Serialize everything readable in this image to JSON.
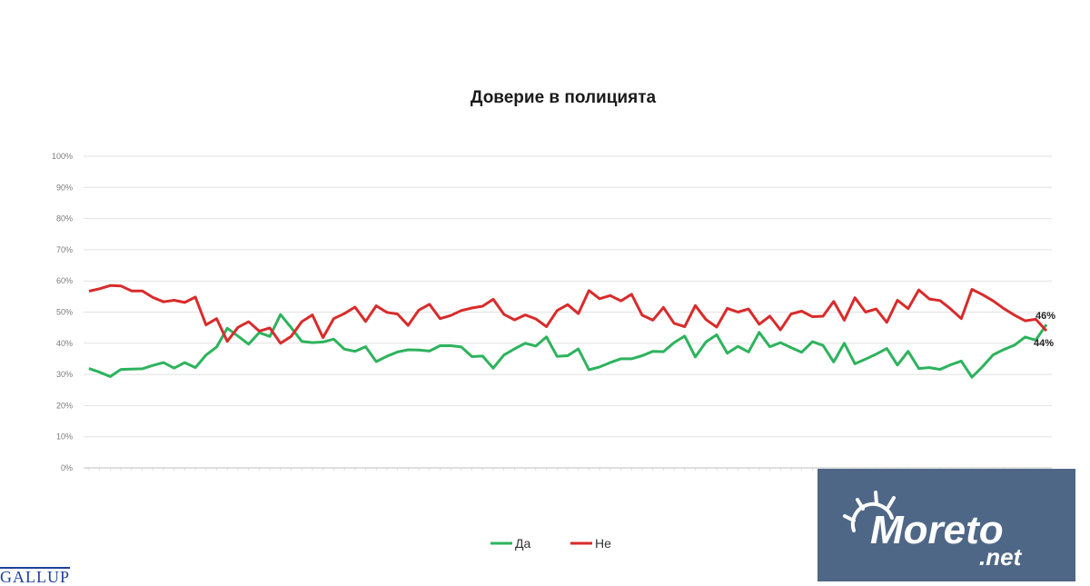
{
  "chart_data": {
    "type": "line",
    "title": "Доверие в полицията",
    "xlabel": "",
    "ylabel": "",
    "ylim": [
      0,
      100
    ],
    "yticks": [
      "0%",
      "10%",
      "20%",
      "30%",
      "40%",
      "50%",
      "60%",
      "70%",
      "80%",
      "90%",
      "100%"
    ],
    "grid": true,
    "legend": "bottom-center",
    "series": [
      {
        "name": "Да",
        "color": "#2db35d",
        "values": [
          31.9,
          30.7,
          29.3,
          31.6,
          31.7,
          31.8,
          32.9,
          33.8,
          32,
          33.8,
          32.2,
          36.2,
          38.8,
          44.8,
          42.3,
          39.7,
          43.4,
          42.2,
          49.2,
          45,
          40.6,
          40.2,
          40.4,
          41.3,
          38.1,
          37.4,
          38.9,
          34.1,
          35.8,
          37.2,
          37.9,
          37.8,
          37.5,
          39.2,
          39.2,
          38.8,
          35.7,
          35.9,
          32,
          36.2,
          38.2,
          40,
          39.1,
          42,
          35.8,
          36,
          38.2,
          31.5,
          32.4,
          33.8,
          35,
          35,
          36,
          37.4,
          37.3,
          40.2,
          42.3,
          35.6,
          40.4,
          42.7,
          36.8,
          39,
          37.2,
          43.5,
          38.9,
          40.2,
          38.6,
          37.1,
          40.5,
          39.3,
          34,
          40,
          33.4,
          34.9,
          36.5,
          38.3,
          33,
          37.4,
          31.9,
          32.2,
          31.6,
          33.1,
          34.3,
          29.1,
          32.5,
          36.3,
          38,
          39.4,
          42,
          41,
          46
        ]
      },
      {
        "name": "Не",
        "color": "#d92b2b",
        "values": [
          56.7,
          57.5,
          58.5,
          58.4,
          56.8,
          56.8,
          54.7,
          53.3,
          53.8,
          53.1,
          54.8,
          45.9,
          47.9,
          40.6,
          45.1,
          46.9,
          43.9,
          44.9,
          40,
          42.2,
          46.9,
          49.1,
          41.8,
          47.9,
          49.5,
          51.6,
          47,
          52,
          49.9,
          49.4,
          45.7,
          50.6,
          52.5,
          47.9,
          48.9,
          50.5,
          51.3,
          51.9,
          54.1,
          49.3,
          47.5,
          49.1,
          47.8,
          45.3,
          50.5,
          52.4,
          49.5,
          56.9,
          54.3,
          55.3,
          53.6,
          55.7,
          49,
          47.4,
          51.5,
          46.4,
          45.3,
          52.1,
          47.6,
          45.2,
          51.2,
          50,
          51,
          46.1,
          48.7,
          44.3,
          49.4,
          50.3,
          48.5,
          48.7,
          53.4,
          47.4,
          54.6,
          50,
          51,
          46.7,
          53.8,
          51.1,
          57.1,
          54.2,
          53.7,
          51,
          47.9,
          57.3,
          55.6,
          53.6,
          51.1,
          49,
          47.2,
          47.7,
          44
        ]
      }
    ],
    "end_labels": [
      "46%",
      "44%"
    ]
  },
  "branding": {
    "logo_text": "Moreto",
    "logo_suffix": ".net",
    "source_text": "GALLUP"
  }
}
